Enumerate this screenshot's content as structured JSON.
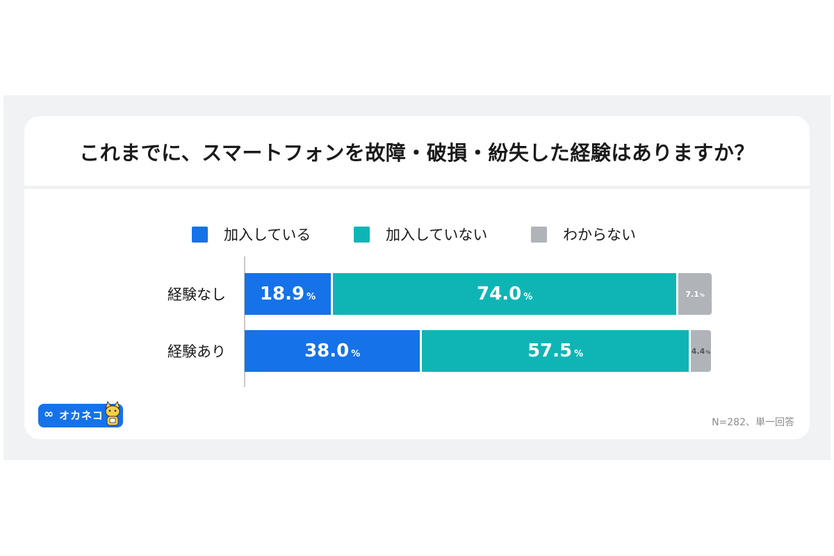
{
  "chart_data": {
    "type": "bar",
    "orientation": "horizontal",
    "stacked": true,
    "percent_stacked": true,
    "title": "これまでに、スマートフォンを故障・破損・紛失した経験はありますか？",
    "categories": [
      "経験なし",
      "経験あり"
    ],
    "series": [
      {
        "name": "加入している",
        "color": "#1572e8",
        "values": [
          18.9,
          38.0
        ]
      },
      {
        "name": "加入していない",
        "color": "#0fb5b5",
        "values": [
          74.0,
          57.5
        ]
      },
      {
        "name": "わからない",
        "color": "#b0b3b8",
        "values": [
          7.1,
          4.4
        ]
      }
    ],
    "data_labels": [
      [
        "18.9",
        "74.0",
        "7.1"
      ],
      [
        "38.0",
        "57.5",
        "4.4"
      ]
    ],
    "unit": "%",
    "xlim": [
      0,
      100
    ],
    "legend_position": "top",
    "grid": false
  },
  "footer": {
    "logo_text": "オカネコ",
    "note": "N=282、単一回答"
  }
}
